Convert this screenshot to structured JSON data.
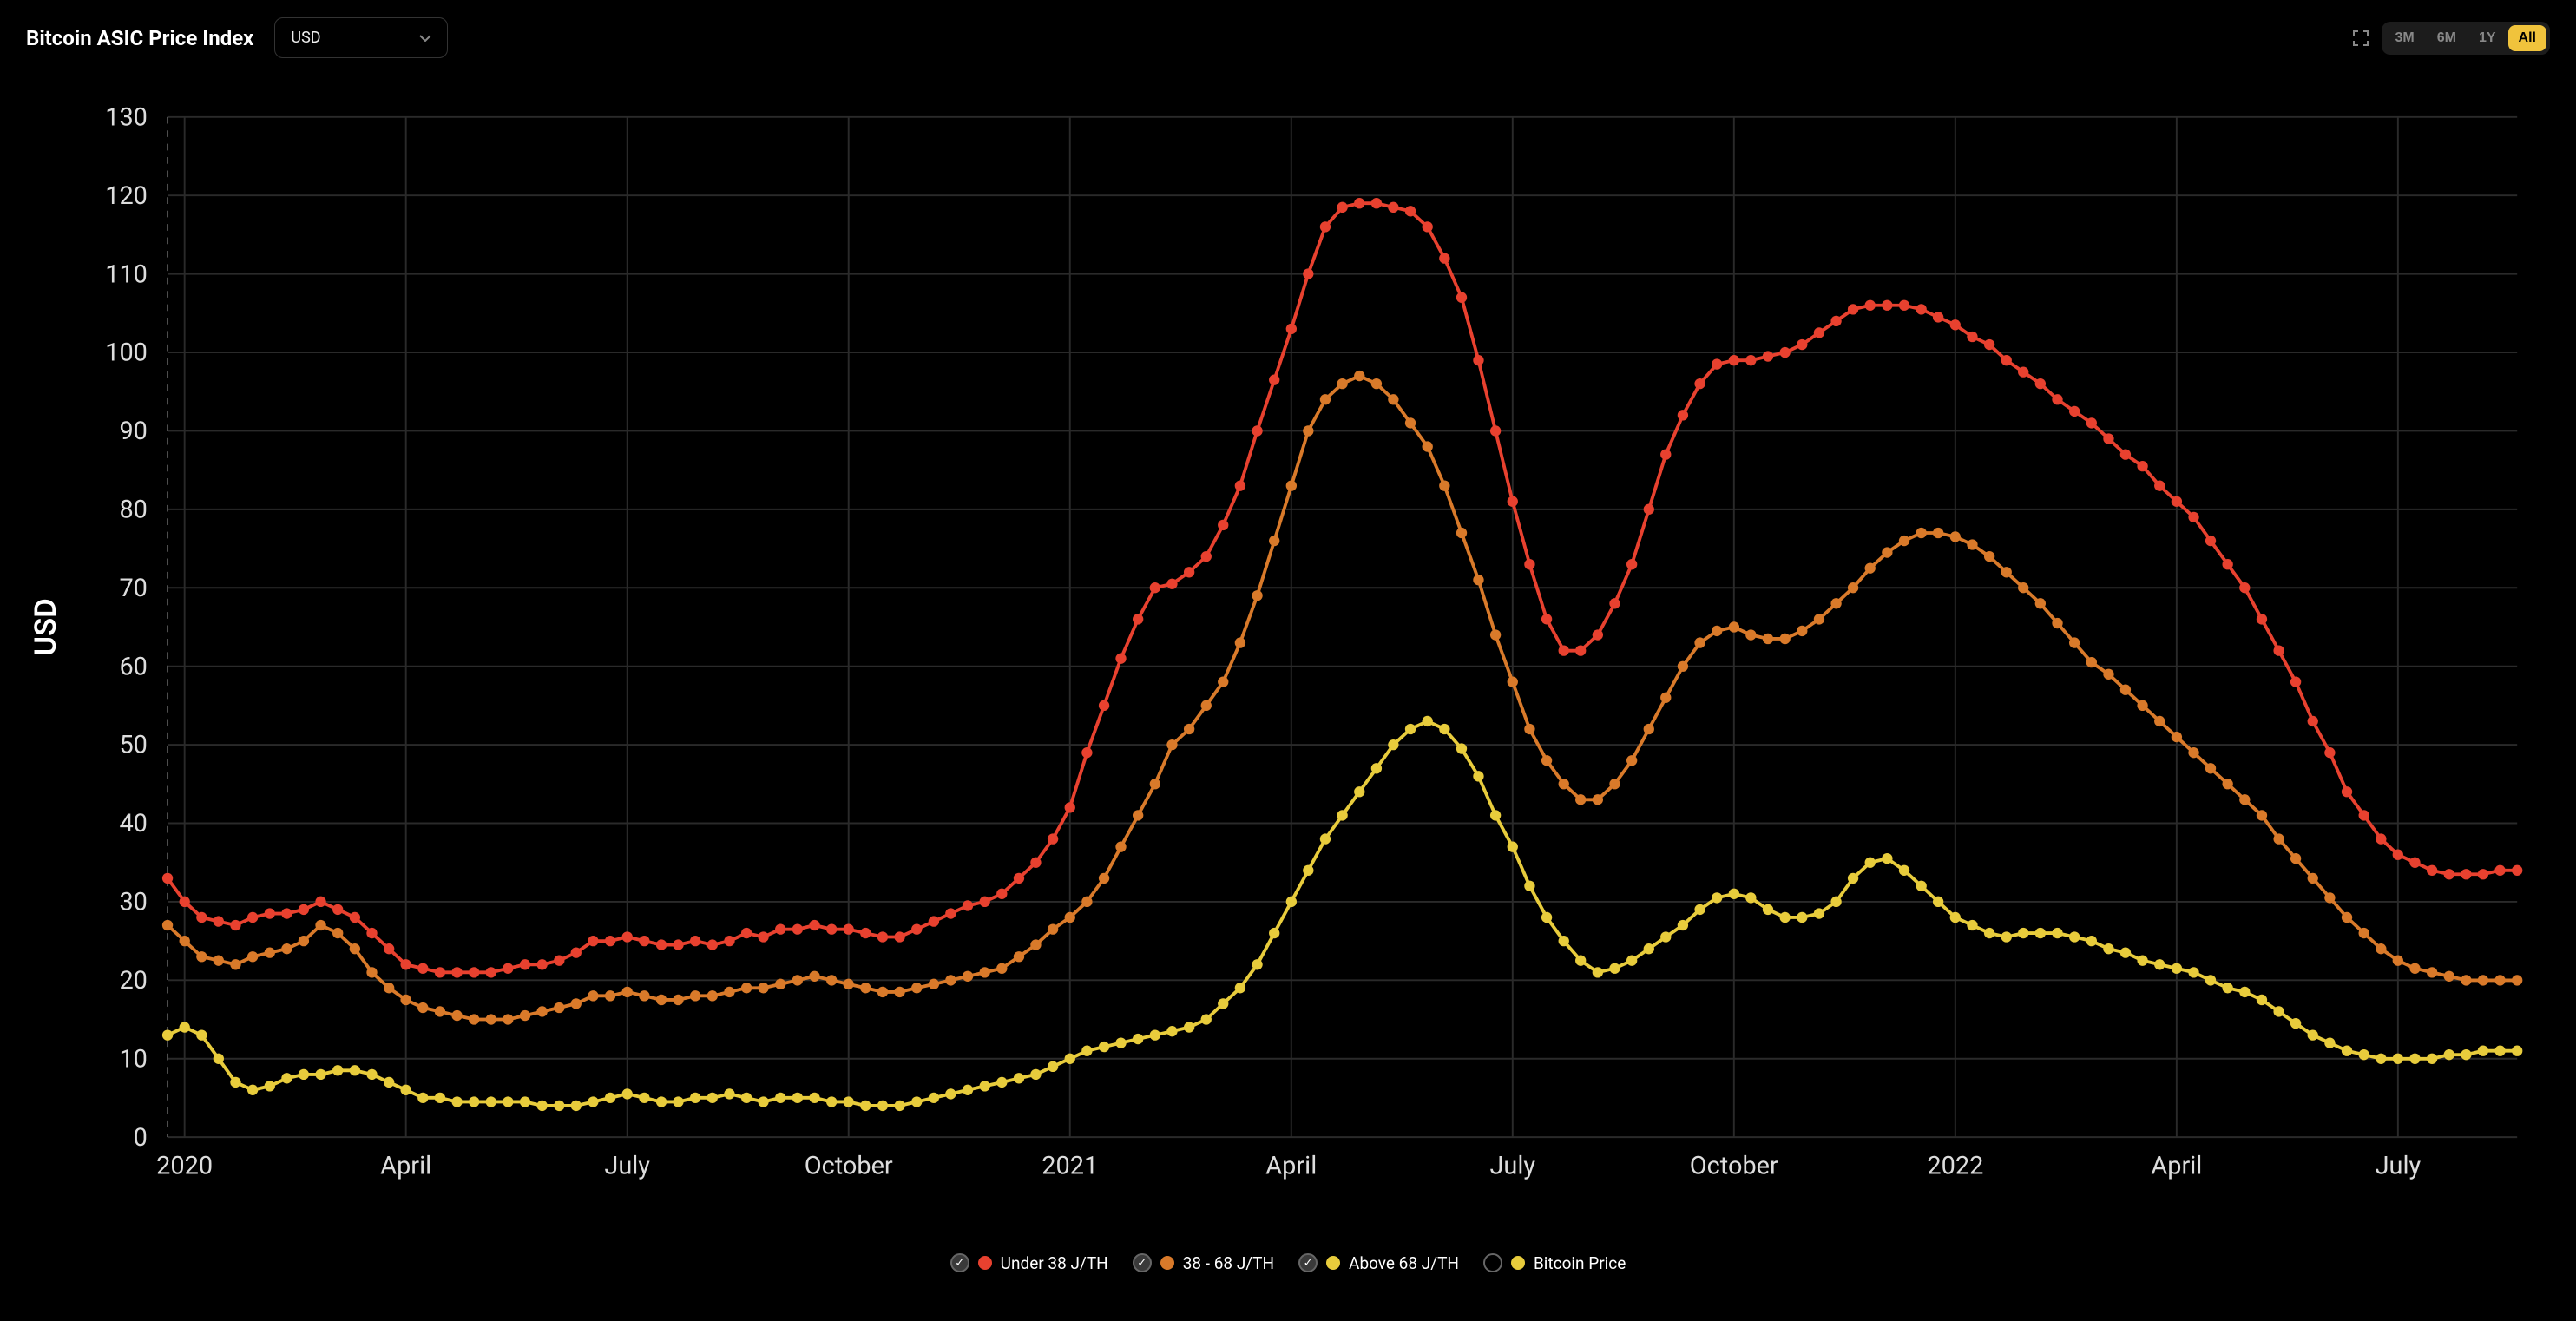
{
  "header": {
    "title": "Bitcoin ASIC Price Index",
    "currency_selected": "USD",
    "range_buttons": [
      "3M",
      "6M",
      "1Y",
      "All"
    ],
    "active_range": "All"
  },
  "chart": {
    "type": "line",
    "background_color": "#000000",
    "grid_color": "#2a2a2a",
    "axis_label_color": "#dddddd",
    "axis_label_fontsize": 15,
    "y_axis_title": "USD",
    "y_title_fontsize": 18,
    "ylim": [
      0,
      130
    ],
    "ytick_step": 10,
    "x_domain_index": [
      0,
      138
    ],
    "x_ticks": [
      {
        "idx": 1,
        "label": "2020"
      },
      {
        "idx": 14,
        "label": "April"
      },
      {
        "idx": 27,
        "label": "July"
      },
      {
        "idx": 40,
        "label": "October"
      },
      {
        "idx": 53,
        "label": "2021"
      },
      {
        "idx": 66,
        "label": "April"
      },
      {
        "idx": 79,
        "label": "July"
      },
      {
        "idx": 92,
        "label": "October"
      },
      {
        "idx": 105,
        "label": "2022"
      },
      {
        "idx": 118,
        "label": "April"
      },
      {
        "idx": 131,
        "label": "July"
      }
    ],
    "start_rule_idx": 0,
    "marker_radius": 3.2,
    "line_width": 2,
    "series": [
      {
        "id": "under38",
        "label": "Under 38 J/TH",
        "color": "#e8412f",
        "checked": true,
        "values": [
          33,
          30,
          28,
          27.5,
          27,
          28,
          28.5,
          28.5,
          29,
          30,
          29,
          28,
          26,
          24,
          22,
          21.5,
          21,
          21,
          21,
          21,
          21.5,
          22,
          22,
          22.5,
          23.5,
          25,
          25,
          25.5,
          25,
          24.5,
          24.5,
          25,
          24.5,
          25,
          26,
          25.5,
          26.5,
          26.5,
          27,
          26.5,
          26.5,
          26,
          25.5,
          25.5,
          26.5,
          27.5,
          28.5,
          29.5,
          30,
          31,
          33,
          35,
          38,
          42,
          49,
          55,
          61,
          66,
          70,
          70.5,
          72,
          74,
          78,
          83,
          90,
          96.5,
          103,
          110,
          116,
          118.5,
          119,
          119,
          118.5,
          118,
          116,
          112,
          107,
          99,
          90,
          81,
          73,
          66,
          62,
          62,
          64,
          68,
          73,
          80,
          87,
          92,
          96,
          98.5,
          99,
          99,
          99.5,
          100,
          101,
          102.5,
          104,
          105.5,
          106,
          106,
          106,
          105.5,
          104.5,
          103.5,
          102,
          101,
          99,
          97.5,
          96,
          94,
          92.5,
          91,
          89,
          87,
          85.5,
          83,
          81,
          79,
          76,
          73,
          70,
          66,
          62,
          58,
          53,
          49,
          44,
          41,
          38,
          36,
          35,
          34,
          33.5,
          33.5,
          33.5,
          34,
          34
        ]
      },
      {
        "id": "38to68",
        "label": "38 - 68 J/TH",
        "color": "#d97a2a",
        "checked": true,
        "values": [
          27,
          25,
          23,
          22.5,
          22,
          23,
          23.5,
          24,
          25,
          27,
          26,
          24,
          21,
          19,
          17.5,
          16.5,
          16,
          15.5,
          15,
          15,
          15,
          15.5,
          16,
          16.5,
          17,
          18,
          18,
          18.5,
          18,
          17.5,
          17.5,
          18,
          18,
          18.5,
          19,
          19,
          19.5,
          20,
          20.5,
          20,
          19.5,
          19,
          18.5,
          18.5,
          19,
          19.5,
          20,
          20.5,
          21,
          21.5,
          23,
          24.5,
          26.5,
          28,
          30,
          33,
          37,
          41,
          45,
          50,
          52,
          55,
          58,
          63,
          69,
          76,
          83,
          90,
          94,
          96,
          97,
          96,
          94,
          91,
          88,
          83,
          77,
          71,
          64,
          58,
          52,
          48,
          45,
          43,
          43,
          45,
          48,
          52,
          56,
          60,
          63,
          64.5,
          65,
          64,
          63.5,
          63.5,
          64.5,
          66,
          68,
          70,
          72.5,
          74.5,
          76,
          77,
          77,
          76.5,
          75.5,
          74,
          72,
          70,
          68,
          65.5,
          63,
          60.5,
          59,
          57,
          55,
          53,
          51,
          49,
          47,
          45,
          43,
          41,
          38,
          35.5,
          33,
          30.5,
          28,
          26,
          24,
          22.5,
          21.5,
          21,
          20.5,
          20,
          20,
          20,
          20
        ]
      },
      {
        "id": "above68",
        "label": "Above 68 J/TH",
        "color": "#e8cc3c",
        "checked": true,
        "values": [
          13,
          14,
          13,
          10,
          7,
          6,
          6.5,
          7.5,
          8,
          8,
          8.5,
          8.5,
          8,
          7,
          6,
          5,
          5,
          4.5,
          4.5,
          4.5,
          4.5,
          4.5,
          4,
          4,
          4,
          4.5,
          5,
          5.5,
          5,
          4.5,
          4.5,
          5,
          5,
          5.5,
          5,
          4.5,
          5,
          5,
          5,
          4.5,
          4.5,
          4,
          4,
          4,
          4.5,
          5,
          5.5,
          6,
          6.5,
          7,
          7.5,
          8,
          9,
          10,
          11,
          11.5,
          12,
          12.5,
          13,
          13.5,
          14,
          15,
          17,
          19,
          22,
          26,
          30,
          34,
          38,
          41,
          44,
          47,
          50,
          52,
          53,
          52,
          49.5,
          46,
          41,
          37,
          32,
          28,
          25,
          22.5,
          21,
          21.5,
          22.5,
          24,
          25.5,
          27,
          29,
          30.5,
          31,
          30.5,
          29,
          28,
          28,
          28.5,
          30,
          33,
          35,
          35.5,
          34,
          32,
          30,
          28,
          27,
          26,
          25.5,
          26,
          26,
          26,
          25.5,
          25,
          24,
          23.5,
          22.5,
          22,
          21.5,
          21,
          20,
          19,
          18.5,
          17.5,
          16,
          14.5,
          13,
          12,
          11,
          10.5,
          10,
          10,
          10,
          10,
          10.5,
          10.5,
          11,
          11,
          11
        ]
      },
      {
        "id": "btcprice",
        "label": "Bitcoin Price",
        "color": "#e8cc3c",
        "checked": false,
        "values": null
      }
    ]
  },
  "legend": {
    "items": [
      {
        "series_id": "under38"
      },
      {
        "series_id": "38to68"
      },
      {
        "series_id": "above68"
      },
      {
        "series_id": "btcprice"
      }
    ]
  }
}
